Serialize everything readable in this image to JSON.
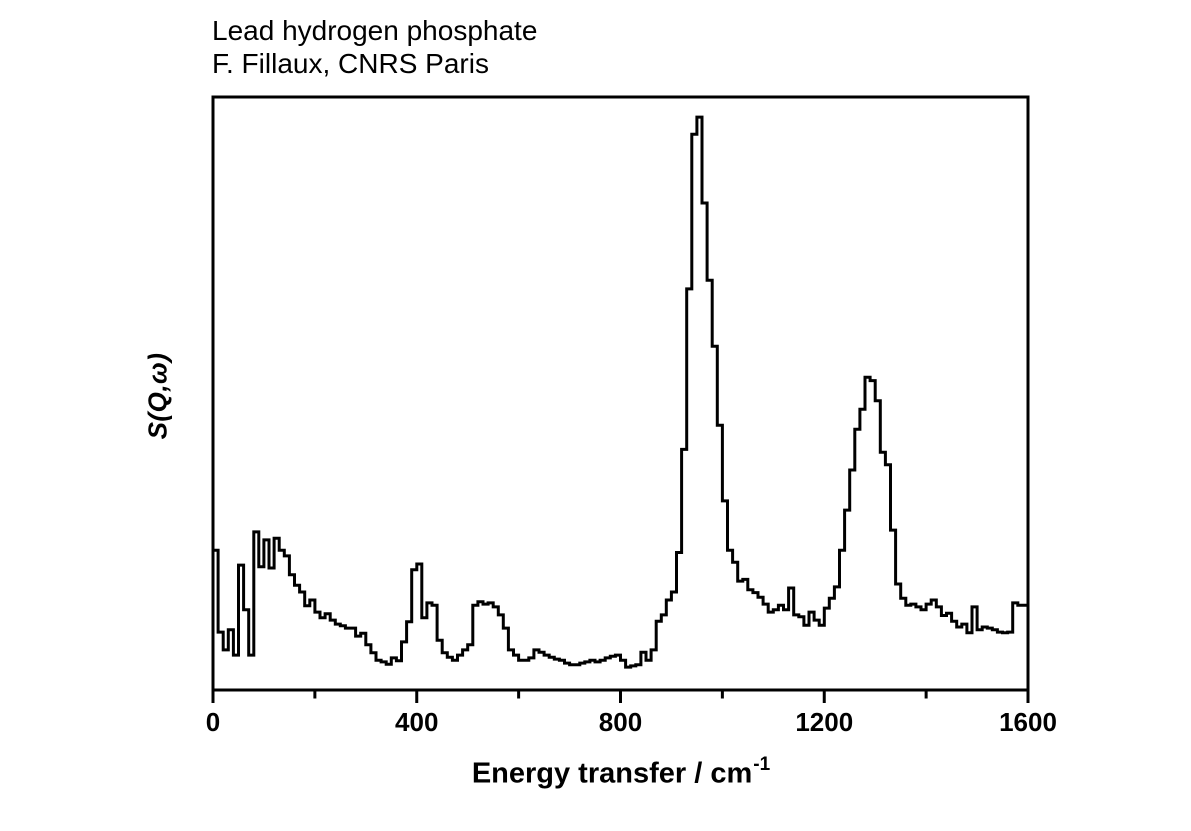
{
  "figure": {
    "title": "Lead hydrogen phosphate",
    "subtitle": "F. Fillaux, CNRS Paris"
  },
  "colors": {
    "foreground": "#000000",
    "background": "#ffffff"
  },
  "chart_data": {
    "type": "line",
    "subtype": "histogram-step-spectrum",
    "title": "Lead hydrogen phosphate",
    "annotation": "F. Fillaux, CNRS Paris",
    "xlabel_base": "Energy transfer / cm",
    "xlabel_superscript": "-1",
    "ylabel": "S(Q,ω)",
    "xlim": [
      0,
      1600
    ],
    "ylim": [
      0,
      1.035
    ],
    "xticks_major": [
      0,
      400,
      800,
      1200,
      1600
    ],
    "xticks_minor": [
      200,
      600,
      1000,
      1400
    ],
    "yticks": [],
    "grid": false,
    "legend": false,
    "line_color": "#000000",
    "bin_width_cm": 10,
    "x_bin_start_cm": 0,
    "intensities_normalized": [
      0.244,
      0.101,
      0.07,
      0.105,
      0.061,
      0.218,
      0.14,
      0.061,
      0.276,
      0.215,
      0.262,
      0.213,
      0.265,
      0.244,
      0.234,
      0.201,
      0.183,
      0.171,
      0.147,
      0.157,
      0.136,
      0.126,
      0.133,
      0.122,
      0.115,
      0.112,
      0.108,
      0.108,
      0.094,
      0.099,
      0.079,
      0.065,
      0.052,
      0.049,
      0.045,
      0.056,
      0.051,
      0.084,
      0.119,
      0.21,
      0.22,
      0.126,
      0.152,
      0.148,
      0.087,
      0.065,
      0.057,
      0.052,
      0.061,
      0.07,
      0.079,
      0.148,
      0.154,
      0.15,
      0.152,
      0.145,
      0.131,
      0.108,
      0.07,
      0.061,
      0.052,
      0.052,
      0.056,
      0.07,
      0.066,
      0.061,
      0.057,
      0.054,
      0.052,
      0.047,
      0.044,
      0.044,
      0.047,
      0.049,
      0.052,
      0.049,
      0.052,
      0.056,
      0.059,
      0.061,
      0.052,
      0.04,
      0.042,
      0.044,
      0.066,
      0.052,
      0.07,
      0.12,
      0.131,
      0.157,
      0.171,
      0.24,
      0.42,
      0.7,
      0.97,
      1.0,
      0.85,
      0.715,
      0.6,
      0.462,
      0.33,
      0.244,
      0.223,
      0.19,
      0.193,
      0.175,
      0.17,
      0.162,
      0.15,
      0.136,
      0.14,
      0.148,
      0.14,
      0.178,
      0.131,
      0.128,
      0.113,
      0.136,
      0.122,
      0.113,
      0.143,
      0.16,
      0.18,
      0.244,
      0.314,
      0.384,
      0.455,
      0.49,
      0.546,
      0.54,
      0.505,
      0.415,
      0.393,
      0.279,
      0.185,
      0.16,
      0.148,
      0.15,
      0.145,
      0.14,
      0.15,
      0.157,
      0.145,
      0.13,
      0.134,
      0.12,
      0.11,
      0.115,
      0.1,
      0.145,
      0.105,
      0.11,
      0.108,
      0.105,
      0.101,
      0.1,
      0.101,
      0.152,
      0.148,
      0.148
    ]
  }
}
